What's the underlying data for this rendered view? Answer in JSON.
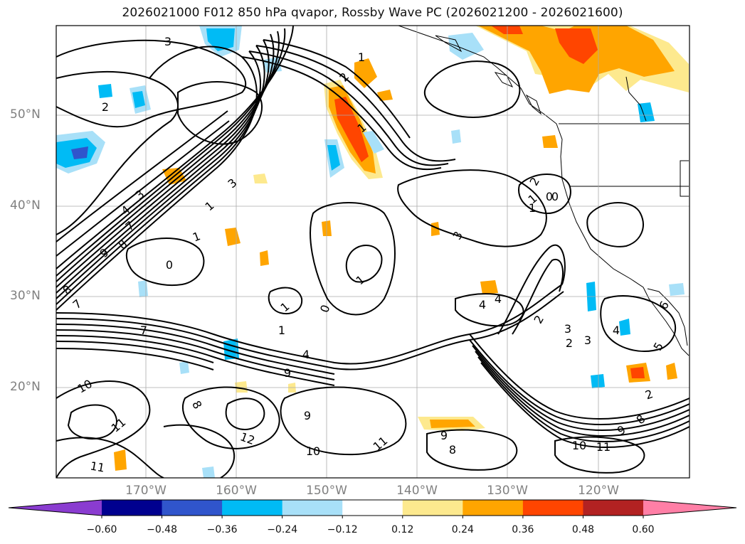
{
  "title": "2026021000 F012 850 hPa qvapor, Rossby Wave PC (2026021200 - 2026021600)",
  "map": {
    "lat_labels": [
      "50°N",
      "40°N",
      "30°N",
      "20°N"
    ],
    "lon_labels": [
      "170°W",
      "160°W",
      "150°W",
      "140°W",
      "130°W",
      "120°W"
    ],
    "contour_labels": [
      "3",
      "2",
      "2",
      "1",
      "1",
      "3",
      "4",
      "7",
      "8",
      "9",
      "8",
      "7",
      "3",
      "1",
      "1",
      "0",
      "1",
      "0",
      "1",
      "2",
      "1",
      "0",
      "3",
      "4",
      "4",
      "2",
      "3",
      "2",
      "3",
      "4",
      "5",
      "6",
      "9",
      "4",
      "10",
      "11",
      "12",
      "11",
      "9",
      "8",
      "7",
      "11",
      "10",
      "9",
      "8",
      "11",
      "10",
      "9",
      "8",
      "2",
      "1",
      "0",
      "1"
    ]
  },
  "colorbar": {
    "colors": [
      "#8a3cd0",
      "#00008f",
      "#3055cc",
      "#00bbf5",
      "#a8e0f8",
      "#ffffff",
      "#fde98e",
      "#ffa500",
      "#ff4500",
      "#b22222",
      "#ff7fa6"
    ],
    "tick_labels": [
      "-0.60",
      "-0.48",
      "-0.36",
      "-0.24",
      "-0.12",
      "0.12",
      "0.24",
      "0.36",
      "0.48",
      "0.60"
    ]
  }
}
